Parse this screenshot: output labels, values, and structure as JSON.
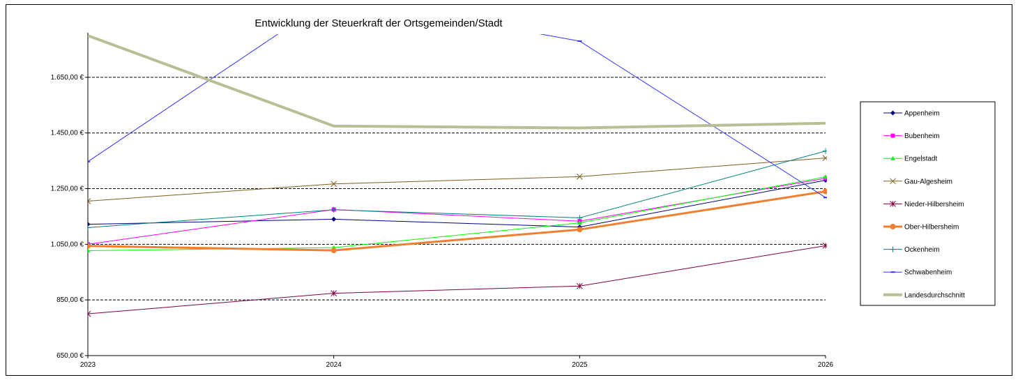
{
  "chart_data": {
    "type": "line",
    "title": "Entwicklung  der Steuerkraft der Ortsgemeinden/Stadt",
    "xlabel": "",
    "ylabel": "",
    "categories": [
      "2023",
      "2024",
      "2025",
      "2026"
    ],
    "ylim": [
      650,
      1800
    ],
    "yticks": [
      650,
      850,
      1050,
      1250,
      1450,
      1650
    ],
    "ytick_labels": [
      "650,00 €",
      "850,00 €",
      "1.050,00 €",
      "1.250,00 €",
      "1.450,00 €",
      "1.650,00 €"
    ],
    "grid": "horizontal dashed",
    "legend_position": "right",
    "series": [
      {
        "name": "Appenheim",
        "values": [
          1122,
          1140,
          1112,
          1280
        ],
        "color": "#000080",
        "marker": "diamond",
        "width": 1
      },
      {
        "name": "Bubenheim",
        "values": [
          1050,
          1175,
          1133,
          1287
        ],
        "color": "#ff00ff",
        "marker": "square",
        "width": 1
      },
      {
        "name": "Engelstadt",
        "values": [
          1027,
          1038,
          1127,
          1292
        ],
        "color": "#00ff00",
        "marker": "triangle",
        "width": 1
      },
      {
        "name": "Gau-Algesheim",
        "values": [
          1205,
          1267,
          1293,
          1360
        ],
        "color": "#7f5f1f",
        "marker": "x",
        "width": 1
      },
      {
        "name": "Nieder-Hilbersheim",
        "values": [
          800,
          874,
          900,
          1045
        ],
        "color": "#800040",
        "marker": "star",
        "width": 1
      },
      {
        "name": "Ober-Hilbersheim",
        "values": [
          1044,
          1028,
          1103,
          1240
        ],
        "color": "#f08030",
        "marker": "circle",
        "width": 3
      },
      {
        "name": "Ockenheim",
        "values": [
          1110,
          1174,
          1145,
          1385
        ],
        "color": "#008080",
        "marker": "plus",
        "width": 1
      },
      {
        "name": "Schwabenheim",
        "values": [
          1347,
          1940,
          1780,
          1218
        ],
        "color": "#3333ff",
        "marker": "dash",
        "width": 1
      },
      {
        "name": "Landesdurchschnitt",
        "values": [
          1800,
          1475,
          1468,
          1485
        ],
        "color": "#b9bf95",
        "marker": "none",
        "width": 4
      }
    ]
  }
}
